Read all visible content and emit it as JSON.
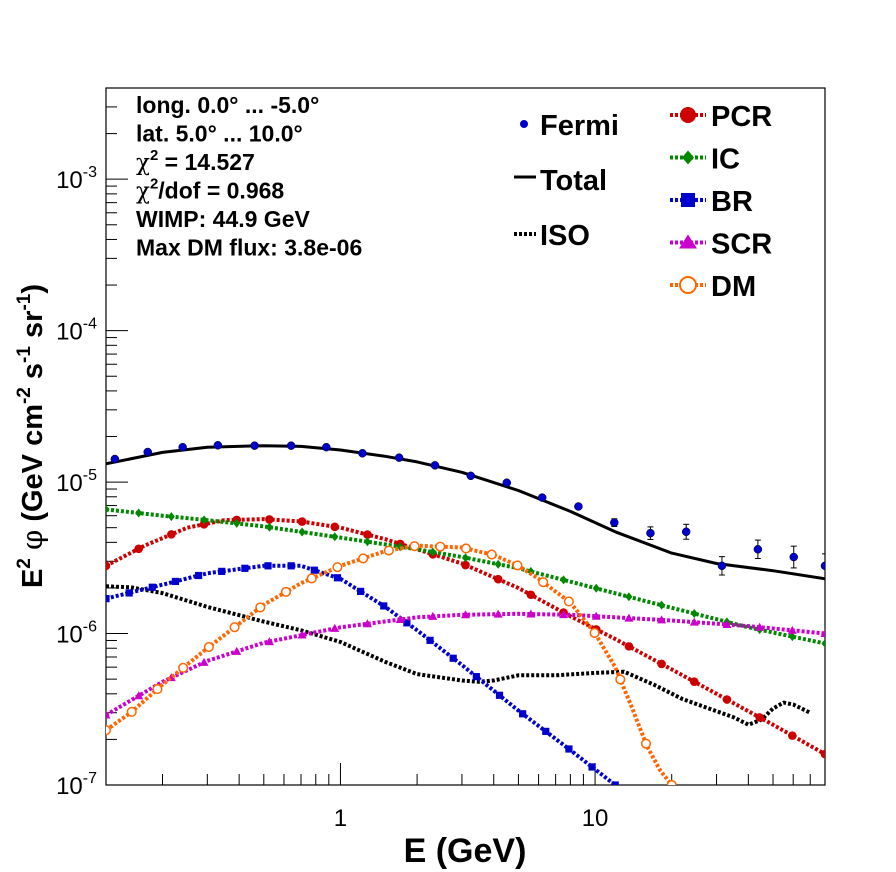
{
  "chart_data": {
    "type": "scatter",
    "title": "",
    "xlabel": "E (GeV)",
    "ylabel_parts": [
      "E",
      "2",
      " ",
      "φ",
      " (GeV cm",
      "-2",
      " s",
      "-1",
      " sr",
      "-1",
      ")"
    ],
    "xscale": "log",
    "yscale": "log",
    "xlim": [
      0.12,
      80
    ],
    "ylim": [
      1e-07,
      0.004
    ],
    "x_ticks": [
      {
        "v": 1,
        "label": "1"
      },
      {
        "v": 10,
        "label": "10"
      }
    ],
    "y_ticks": [
      {
        "v": 1e-07,
        "base": "10",
        "exp": "-7"
      },
      {
        "v": 1e-06,
        "base": "10",
        "exp": "-6"
      },
      {
        "v": 1e-05,
        "base": "10",
        "exp": "-5"
      },
      {
        "v": 0.0001,
        "base": "10",
        "exp": "-4"
      },
      {
        "v": 0.001,
        "base": "10",
        "exp": "-3"
      }
    ],
    "info_text": [
      {
        "text": "long. 0.0° ... -5.0°"
      },
      {
        "text": "lat. 5.0° ... 10.0°"
      },
      {
        "pre": "χ",
        "sup": "2",
        "post": " = 14.527"
      },
      {
        "pre": "χ",
        "sup": "2",
        "post": "/dof = 0.968"
      },
      {
        "text": "WIMP: 44.9 GeV"
      },
      {
        "text": "Max DM flux: 3.8e-06"
      }
    ],
    "legend_left": [
      {
        "label": "Fermi",
        "style": "point",
        "color": "#0000cc"
      },
      {
        "label": "Total",
        "style": "solid",
        "color": "#000000"
      },
      {
        "label": "ISO",
        "style": "dotted",
        "color": "#000000"
      }
    ],
    "legend_right": [
      {
        "label": "PCR",
        "marker": "circle",
        "color": "#cc0000"
      },
      {
        "label": "IC",
        "marker": "diamond",
        "color": "#008800"
      },
      {
        "label": "BR",
        "marker": "square",
        "color": "#0000cc"
      },
      {
        "label": "SCR",
        "marker": "triangle",
        "color": "#cc00cc"
      },
      {
        "label": "DM",
        "marker": "open-circle",
        "color": "#ff6600"
      }
    ],
    "fermi": {
      "x": [
        0.13,
        0.175,
        0.24,
        0.33,
        0.46,
        0.64,
        0.88,
        1.22,
        1.7,
        2.35,
        3.25,
        4.5,
        6.2,
        8.6,
        11.9,
        16.5,
        22.8,
        31.5,
        43.6,
        60.3,
        80
      ],
      "y": [
        1.42e-05,
        1.58e-05,
        1.7e-05,
        1.75e-05,
        1.74e-05,
        1.74e-05,
        1.7e-05,
        1.55e-05,
        1.45e-05,
        1.29e-05,
        1.1e-05,
        9.9e-06,
        7.9e-06,
        6.9e-06,
        5.4e-06,
        4.6e-06,
        4.7e-06,
        2.8e-06,
        3.6e-06,
        3.2e-06,
        2.8e-06
      ],
      "err": [
        0,
        0,
        0,
        0,
        0,
        0,
        0,
        0,
        0,
        0,
        0,
        0,
        0,
        0,
        0.06,
        0.1,
        0.12,
        0.15,
        0.15,
        0.18,
        0.2
      ]
    },
    "series": [
      {
        "name": "Total",
        "color": "#000000",
        "style": "solid",
        "marker": "none",
        "x": [
          0.12,
          0.2,
          0.3,
          0.5,
          0.7,
          1,
          1.5,
          2,
          3,
          5,
          8,
          12,
          20,
          30,
          50,
          80
        ],
        "y": [
          1.32e-05,
          1.57e-05,
          1.7e-05,
          1.74e-05,
          1.72e-05,
          1.63e-05,
          1.48e-05,
          1.36e-05,
          1.16e-05,
          8.8e-06,
          6.4e-06,
          4.7e-06,
          3.4e-06,
          2.9e-06,
          2.6e-06,
          2.3e-06
        ]
      },
      {
        "name": "ISO",
        "color": "#000000",
        "style": "dotted",
        "marker": "none",
        "x": [
          0.12,
          0.15,
          0.2,
          0.3,
          0.5,
          0.7,
          1,
          1.5,
          2,
          3,
          3.5,
          4,
          5,
          7,
          10,
          13,
          17,
          22,
          28,
          35,
          40,
          45,
          50,
          55,
          60,
          70
        ],
        "y": [
          2.05e-06,
          2.02e-06,
          1.85e-06,
          1.5e-06,
          1.2e-06,
          1.05e-06,
          8.8e-07,
          6.5e-07,
          5.4e-07,
          4.9e-07,
          4.8e-07,
          4.9e-07,
          5.3e-07,
          5.3e-07,
          5.5e-07,
          5.6e-07,
          4.6e-07,
          3.7e-07,
          3.2e-07,
          2.8e-07,
          2.5e-07,
          2.7e-07,
          3.2e-07,
          3.5e-07,
          3.4e-07,
          3e-07
        ]
      },
      {
        "name": "PCR",
        "color": "#cc0000",
        "style": "dotted",
        "marker": "circle",
        "x": [
          0.12,
          0.17,
          0.25,
          0.35,
          0.5,
          0.7,
          1,
          1.5,
          2,
          3,
          5,
          8,
          12,
          20,
          30,
          50,
          80
        ],
        "y": [
          2.8e-06,
          3.8e-06,
          5e-06,
          5.6e-06,
          5.7e-06,
          5.5e-06,
          5e-06,
          4.2e-06,
          3.6e-06,
          2.9e-06,
          2e-06,
          1.3e-06,
          9.2e-07,
          5.8e-07,
          4e-07,
          2.5e-07,
          1.6e-07
        ]
      },
      {
        "name": "IC",
        "color": "#008800",
        "style": "dotted",
        "marker": "diamond",
        "x": [
          0.12,
          0.2,
          0.3,
          0.5,
          1,
          2,
          3,
          5,
          10,
          20,
          40,
          80
        ],
        "y": [
          6.6e-06,
          6e-06,
          5.6e-06,
          5.1e-06,
          4.3e-06,
          3.6e-06,
          3.2e-06,
          2.7e-06,
          2e-06,
          1.48e-06,
          1.1e-06,
          8.6e-07
        ]
      },
      {
        "name": "BR",
        "color": "#0000cc",
        "style": "dotted",
        "marker": "square",
        "x": [
          0.12,
          0.2,
          0.3,
          0.5,
          0.7,
          1,
          1.5,
          2,
          3,
          5,
          8,
          12
        ],
        "y": [
          1.7e-06,
          2.1e-06,
          2.5e-06,
          2.8e-06,
          2.8e-06,
          2.3e-06,
          1.5e-06,
          1.05e-06,
          6.2e-07,
          3.1e-07,
          1.7e-07,
          1e-07
        ]
      },
      {
        "name": "SCR",
        "color": "#cc00cc",
        "style": "dotted",
        "marker": "triangle",
        "x": [
          0.12,
          0.2,
          0.3,
          0.5,
          1,
          2,
          3,
          5,
          8,
          12,
          20,
          40,
          80
        ],
        "y": [
          2.9e-07,
          4.8e-07,
          6.6e-07,
          8.7e-07,
          1.1e-06,
          1.28e-06,
          1.33e-06,
          1.35e-06,
          1.33e-06,
          1.28e-06,
          1.22e-06,
          1.12e-06,
          1e-06
        ]
      },
      {
        "name": "DM",
        "color": "#ff6600",
        "style": "dotted",
        "marker": "open-circle",
        "x": [
          0.12,
          0.15,
          0.2,
          0.3,
          0.5,
          0.7,
          1,
          1.5,
          2,
          3,
          4,
          5,
          6,
          8,
          10,
          12,
          14,
          16,
          18,
          20
        ],
        "y": [
          2.3e-07,
          3e-07,
          4.6e-07,
          8e-07,
          1.55e-06,
          2.15e-06,
          2.8e-06,
          3.5e-06,
          3.8e-06,
          3.7e-06,
          3.3e-06,
          2.8e-06,
          2.3e-06,
          1.6e-06,
          1e-06,
          6e-07,
          3.2e-07,
          1.8e-07,
          1.25e-07,
          1e-07
        ]
      }
    ]
  }
}
